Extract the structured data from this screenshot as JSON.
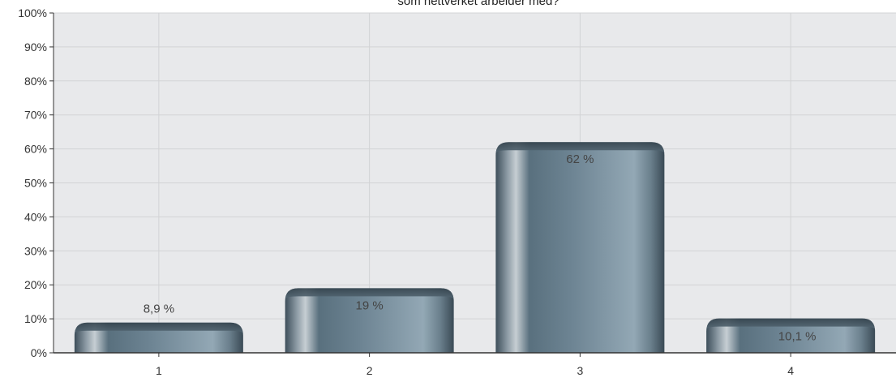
{
  "chart_data": {
    "type": "bar",
    "title": "som nettverket arbeider med?",
    "categories": [
      "1",
      "2",
      "3",
      "4"
    ],
    "values": [
      8.9,
      19,
      62,
      10.1
    ],
    "value_labels": [
      "8,9 %",
      "19 %",
      "62 %",
      "10,1 %"
    ],
    "ylim": [
      0,
      100
    ],
    "y_tick_labels": [
      "0%",
      "10%",
      "20%",
      "30%",
      "40%",
      "50%",
      "60%",
      "70%",
      "80%",
      "90%",
      "100%"
    ],
    "xlabel": "",
    "ylabel": "",
    "grid": true,
    "legend": "none"
  },
  "colors": {
    "plot_background": "#e8e9eb",
    "grid": "#d2d3d5",
    "bar_dark": "#3f505c",
    "bar_mid": "#6b7f8c",
    "bar_light": "#b8c3ca",
    "axis": "#333333"
  }
}
